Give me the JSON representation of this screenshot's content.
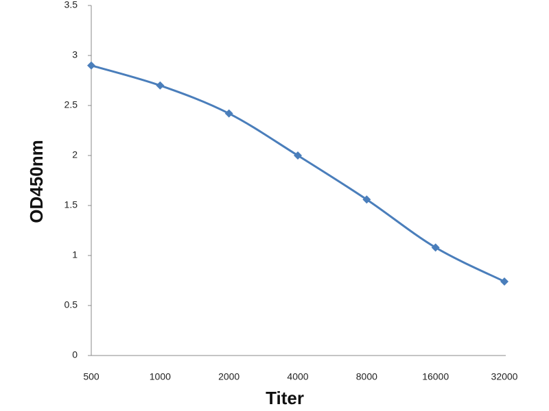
{
  "chart_data": {
    "type": "line",
    "xlabel": "Titer",
    "ylabel": "OD450nm",
    "categories": [
      "500",
      "1000",
      "2000",
      "4000",
      "8000",
      "16000",
      "32000"
    ],
    "series": [
      {
        "name": "OD450nm",
        "color": "#4a7ebb",
        "values": [
          2.9,
          2.7,
          2.42,
          2.0,
          1.56,
          1.08,
          0.74
        ]
      }
    ],
    "ylim": [
      0,
      3.5
    ],
    "yticks": [
      0,
      0.5,
      1,
      1.5,
      2,
      2.5,
      3,
      3.5
    ],
    "grid": false
  }
}
